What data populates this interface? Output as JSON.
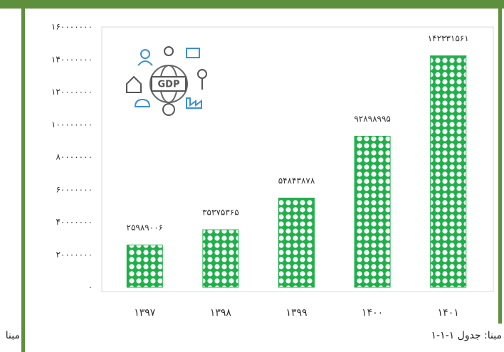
{
  "chart_data": {
    "type": "bar",
    "categories": [
      "۱۳۹۷",
      "۱۳۹۸",
      "۱۳۹۹",
      "۱۴۰۰",
      "۱۴۰۱"
    ],
    "values": [
      25989006,
      35375365,
      54843878,
      92898995,
      142331561
    ],
    "value_labels": [
      "۲۵۹۸۹۰۰۶",
      "۳۵۳۷۵۳۶۵",
      "۵۴۸۴۳۸۷۸",
      "۹۲۸۹۸۹۹۵",
      "۱۴۲۳۳۱۵۶۱"
    ],
    "color": "#1fb04a",
    "ylim": [
      0,
      160000000
    ],
    "yticks": [
      {
        "value": 0,
        "label": "۰"
      },
      {
        "value": 20000000,
        "label": "۲۰۰۰۰۰۰۰"
      },
      {
        "value": 40000000,
        "label": "۴۰۰۰۰۰۰۰"
      },
      {
        "value": 60000000,
        "label": "۶۰۰۰۰۰۰۰"
      },
      {
        "value": 80000000,
        "label": "۸۰۰۰۰۰۰۰"
      },
      {
        "value": 100000000,
        "label": "۱۰۰۰۰۰۰۰۰"
      },
      {
        "value": 120000000,
        "label": "۱۲۰۰۰۰۰۰۰"
      },
      {
        "value": 140000000,
        "label": "۱۴۰۰۰۰۰۰۰"
      },
      {
        "value": 160000000,
        "label": "۱۶۰۰۰۰۰۰۰"
      }
    ],
    "grid": false,
    "source": "مبنا: جدول ۱-۱-۱",
    "source_cut": "مبنا"
  }
}
